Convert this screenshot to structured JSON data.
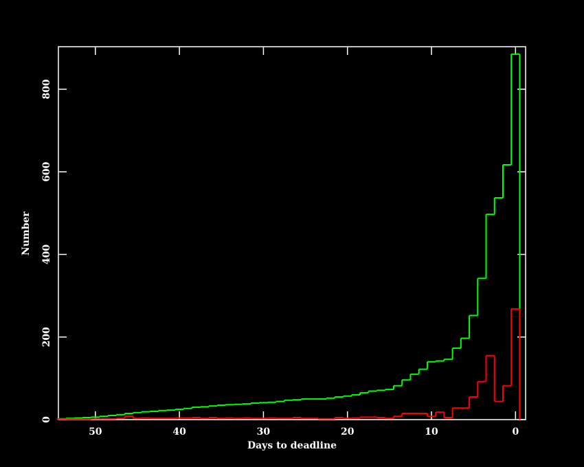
{
  "chart_data": {
    "type": "histogram",
    "xlabel": "Days to deadline",
    "ylabel": "Number",
    "bins": [
      -0.5,
      0.5,
      1.5,
      2.5,
      3.5,
      4.5,
      5.5,
      6.5,
      7.5,
      8.5,
      9.5,
      10.5,
      11.5,
      12.5,
      13.5,
      14.5,
      15.5,
      16.5,
      17.5,
      18.5,
      19.5,
      20.5,
      21.5,
      22.5,
      23.5,
      24.5,
      25.5,
      26.5,
      27.5,
      28.5,
      29.5,
      30.5,
      31.5,
      32.5,
      33.5,
      34.5,
      35.5,
      36.5,
      37.5,
      38.5,
      39.5,
      40.5,
      41.5,
      42.5,
      43.5,
      44.5,
      45.5,
      46.5,
      47.5,
      48.5,
      49.5,
      50.5,
      51.5,
      52.5,
      53.5,
      54.5
    ],
    "series": [
      {
        "color": "#00ff00",
        "values": [
          885,
          617,
          537,
          497,
          342,
          252,
          197,
          173,
          146,
          142,
          140,
          122,
          110,
          96,
          82,
          73,
          71,
          69,
          65,
          60,
          57,
          55,
          52,
          50,
          50,
          50,
          48,
          47,
          44,
          42,
          41,
          40,
          38,
          37,
          36,
          35,
          33,
          31,
          30,
          27,
          25,
          23,
          22,
          20,
          19,
          17,
          15,
          12,
          10,
          8,
          6,
          5,
          4,
          3,
          2
        ]
      },
      {
        "color": "#ff0000",
        "values": [
          268,
          82,
          44,
          155,
          92,
          55,
          28,
          28,
          5,
          18,
          8,
          15,
          15,
          15,
          8,
          3,
          5,
          6,
          6,
          4,
          3,
          5,
          2,
          2,
          3,
          3,
          5,
          3,
          3,
          4,
          3,
          3,
          4,
          3,
          4,
          3,
          5,
          3,
          5,
          4,
          4,
          3,
          3,
          3,
          4,
          3,
          8,
          3,
          2,
          2,
          2,
          1,
          1,
          1,
          1
        ]
      }
    ],
    "xlim": [
      54.4,
      -1.2
    ],
    "ylim": [
      0,
      903
    ],
    "xticks": [
      0,
      10,
      20,
      30,
      40,
      50
    ],
    "yticks": [
      0,
      200,
      400,
      600,
      800
    ],
    "axis_color": "#ffffff"
  }
}
